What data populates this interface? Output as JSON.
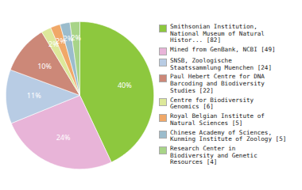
{
  "chart_data": {
    "type": "pie",
    "categories": [
      "Smithsonian Institution,\nNational Museum of Natural\nHistor... [82]",
      "Mined from GenBank, NCBI [49]",
      "SNSB, Zoologische\nStaatssammlung Muenchen [24]",
      "Paul Hebert Centre for DNA\nBarcoding and Biodiversity\nStudies [22]",
      "Centre for Biodiversity\nGenomics [6]",
      "Royal Belgian Institute of\nNatural Sciences [5]",
      "Chinese Academy of Sciences,\nKunming Institute of Zoology [5]",
      "Research Center in\nBiodiversity and Genetic\nResources [4]"
    ],
    "values": [
      40,
      24,
      11,
      10,
      2,
      2,
      2,
      2
    ],
    "value_labels": [
      "40%",
      "24%",
      "11%",
      "10%",
      "2%",
      "2%",
      "2%",
      "2%"
    ],
    "colors": [
      "#8dc83e",
      "#e8b4d8",
      "#b8cce4",
      "#cc8878",
      "#dde89a",
      "#f0a868",
      "#9bbccc",
      "#a8d488"
    ],
    "data_labels": true,
    "legend": "right"
  }
}
